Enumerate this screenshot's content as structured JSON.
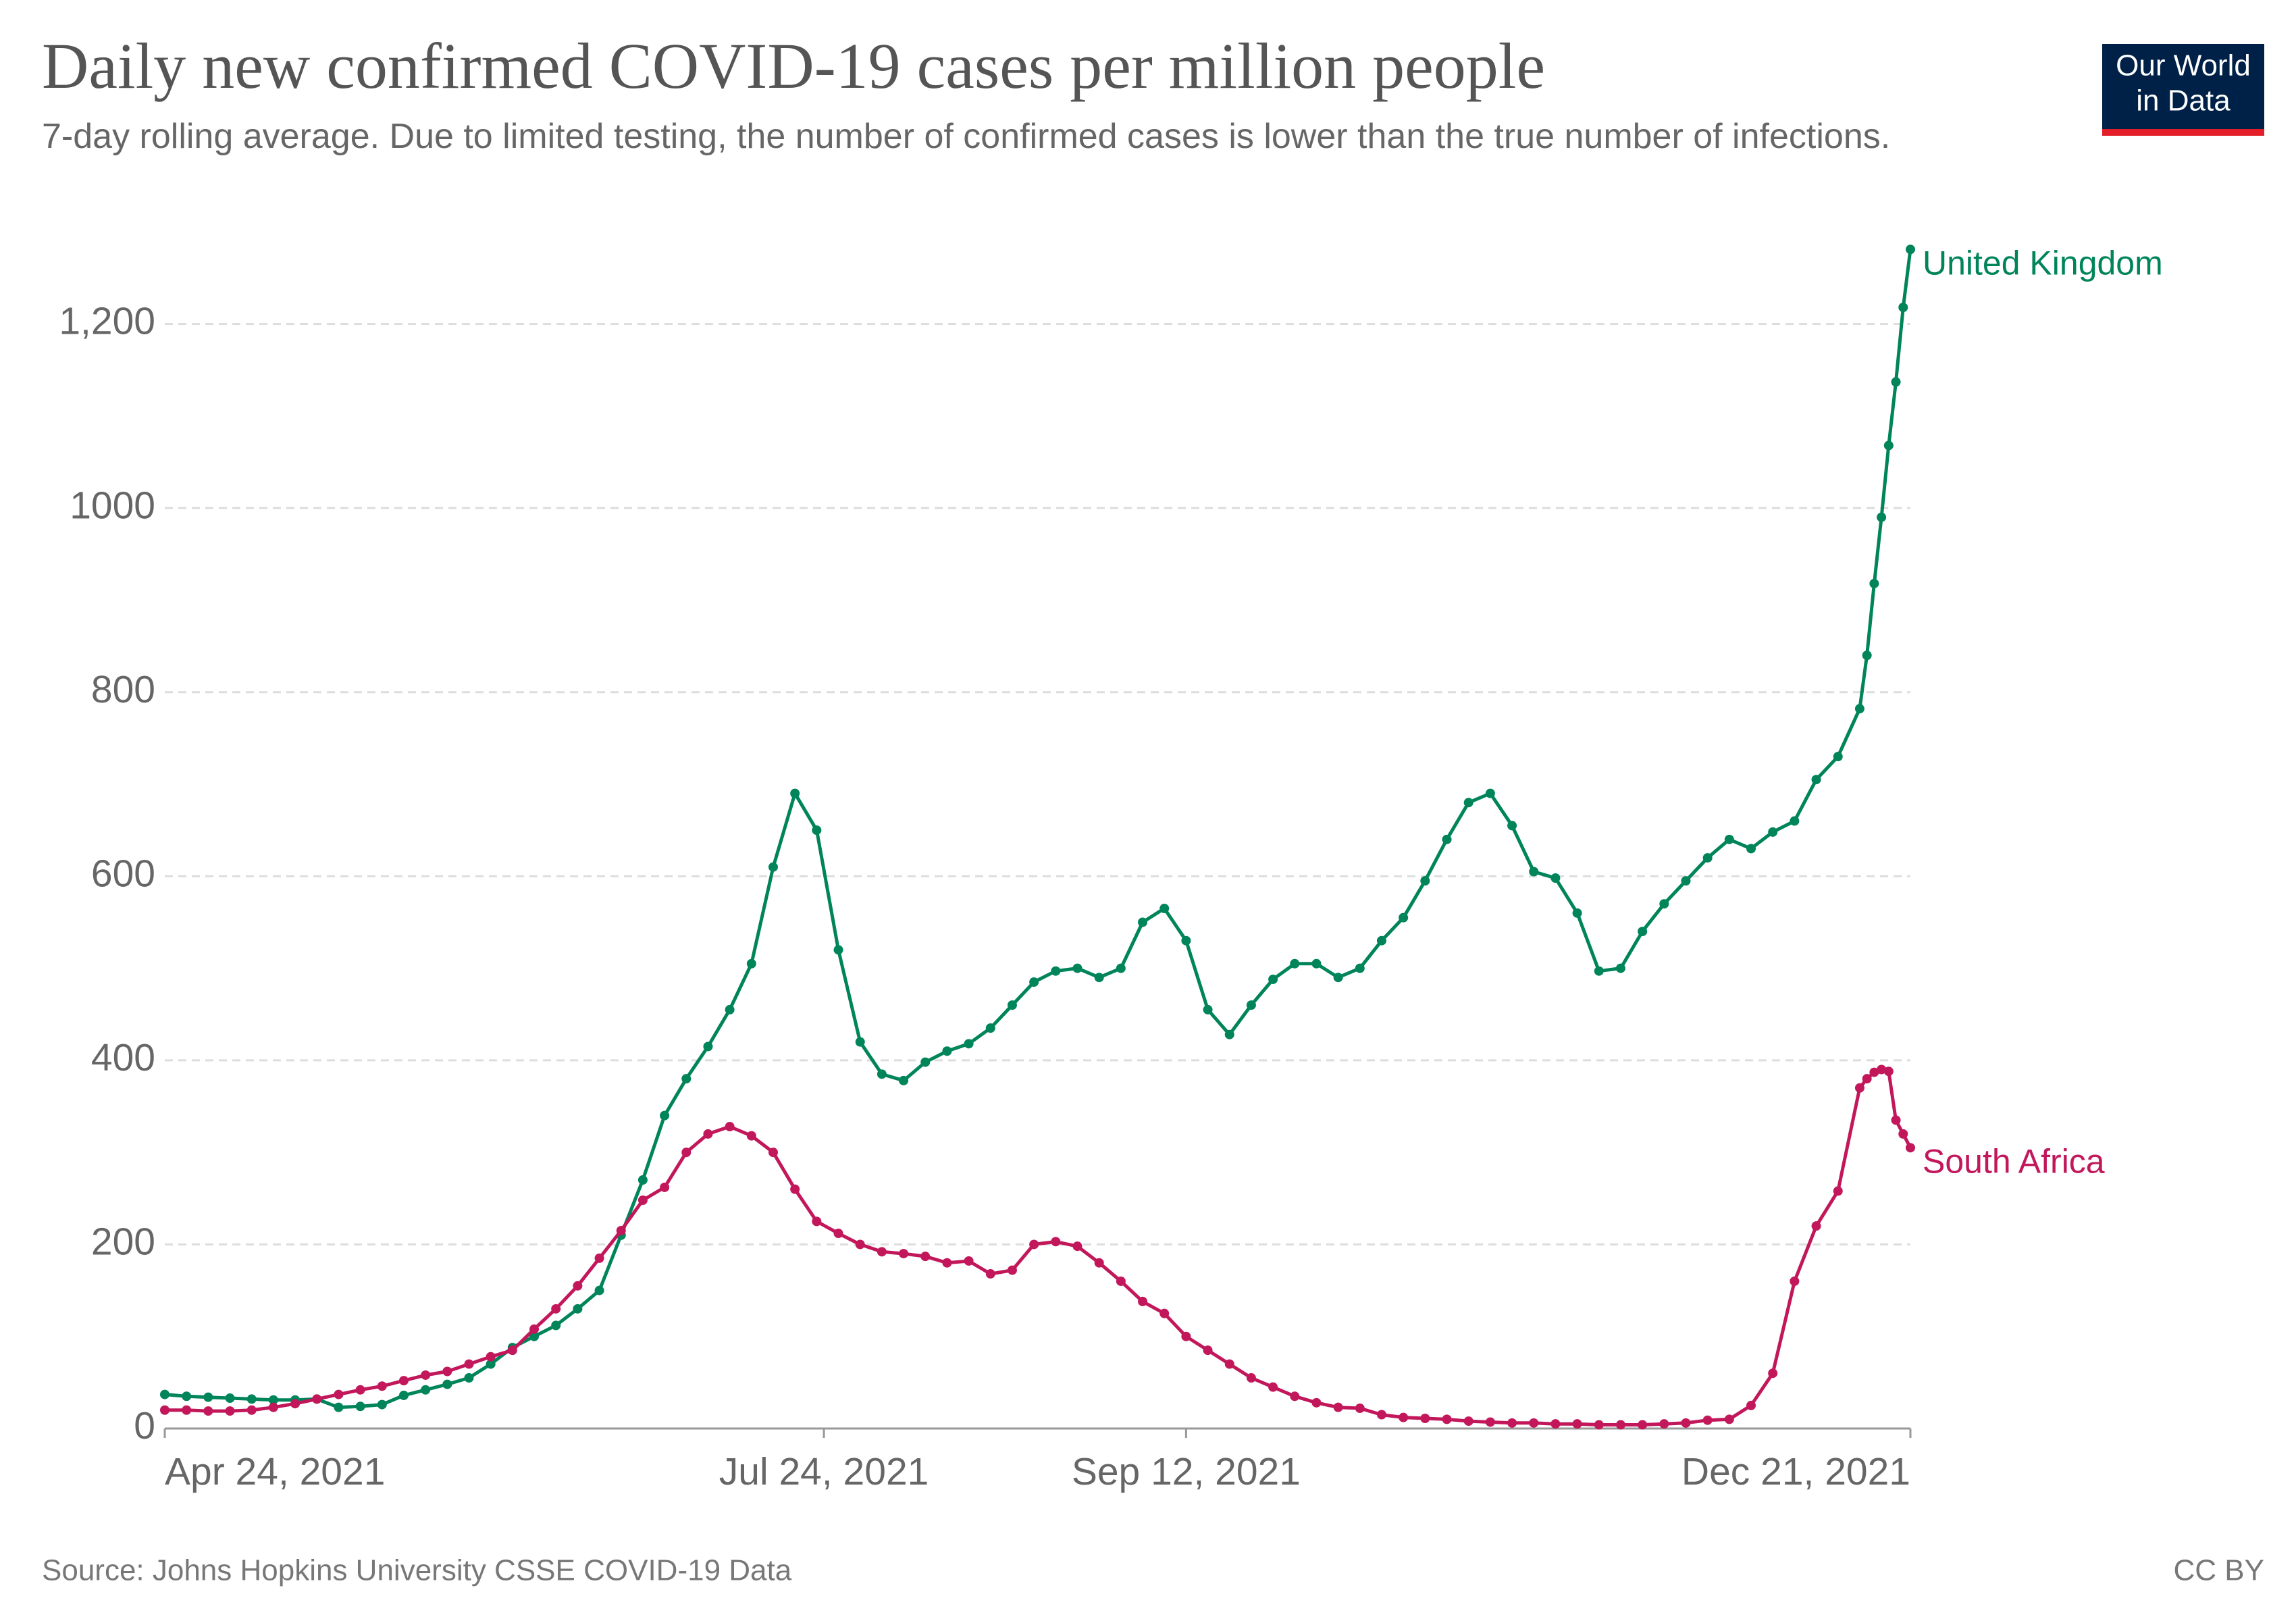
{
  "chart_data": {
    "type": "line",
    "title": "Daily new confirmed COVID-19 cases per million people",
    "subtitle": "7-day rolling average. Due to limited testing, the number of confirmed cases is lower than the true number of infections.",
    "source": "Source: Johns Hopkins University CSSE COVID-19 Data",
    "license": "CC BY",
    "logo": [
      "Our World",
      "in Data"
    ],
    "x": [
      "2021-04-24",
      "2021-04-27",
      "2021-04-30",
      "2021-05-03",
      "2021-05-06",
      "2021-05-09",
      "2021-05-12",
      "2021-05-15",
      "2021-05-18",
      "2021-05-21",
      "2021-05-24",
      "2021-05-27",
      "2021-05-30",
      "2021-06-02",
      "2021-06-05",
      "2021-06-08",
      "2021-06-11",
      "2021-06-14",
      "2021-06-17",
      "2021-06-20",
      "2021-06-23",
      "2021-06-26",
      "2021-06-29",
      "2021-07-02",
      "2021-07-05",
      "2021-07-08",
      "2021-07-11",
      "2021-07-14",
      "2021-07-17",
      "2021-07-20",
      "2021-07-23",
      "2021-07-26",
      "2021-07-29",
      "2021-08-01",
      "2021-08-04",
      "2021-08-07",
      "2021-08-10",
      "2021-08-13",
      "2021-08-16",
      "2021-08-19",
      "2021-08-22",
      "2021-08-25",
      "2021-08-28",
      "2021-08-31",
      "2021-09-03",
      "2021-09-06",
      "2021-09-09",
      "2021-09-12",
      "2021-09-15",
      "2021-09-18",
      "2021-09-21",
      "2021-09-24",
      "2021-09-27",
      "2021-09-30",
      "2021-10-03",
      "2021-10-06",
      "2021-10-09",
      "2021-10-12",
      "2021-10-15",
      "2021-10-18",
      "2021-10-21",
      "2021-10-24",
      "2021-10-27",
      "2021-10-30",
      "2021-11-02",
      "2021-11-05",
      "2021-11-08",
      "2021-11-11",
      "2021-11-14",
      "2021-11-17",
      "2021-11-20",
      "2021-11-23",
      "2021-11-26",
      "2021-11-29",
      "2021-12-02",
      "2021-12-05",
      "2021-12-08",
      "2021-12-11",
      "2021-12-14",
      "2021-12-15",
      "2021-12-16",
      "2021-12-17",
      "2021-12-18",
      "2021-12-19",
      "2021-12-20",
      "2021-12-21"
    ],
    "series": [
      {
        "name": "United Kingdom",
        "color": "#00845a",
        "values": [
          37,
          35,
          34,
          33,
          32,
          31,
          31,
          32,
          23,
          24,
          26,
          36,
          42,
          48,
          55,
          70,
          88,
          100,
          112,
          130,
          150,
          210,
          270,
          340,
          380,
          415,
          455,
          505,
          610,
          690,
          650,
          520,
          420,
          385,
          378,
          398,
          410,
          418,
          435,
          460,
          485,
          497,
          500,
          490,
          500,
          550,
          565,
          530,
          455,
          428,
          460,
          488,
          505,
          505,
          490,
          500,
          530,
          555,
          595,
          640,
          680,
          690,
          655,
          605,
          598,
          560,
          497,
          500,
          540,
          570,
          595,
          620,
          640,
          630,
          648,
          660,
          705,
          730,
          782,
          840,
          918,
          990,
          1068,
          1137,
          1218,
          1281
        ]
      },
      {
        "name": "South Africa",
        "color": "#c2185b",
        "values": [
          20,
          20,
          19,
          19,
          20,
          23,
          27,
          32,
          37,
          42,
          46,
          52,
          58,
          62,
          70,
          78,
          85,
          108,
          130,
          155,
          185,
          215,
          248,
          262,
          300,
          320,
          328,
          318,
          300,
          260,
          225,
          212,
          200,
          192,
          190,
          187,
          180,
          182,
          168,
          172,
          200,
          203,
          198,
          180,
          160,
          138,
          125,
          100,
          85,
          70,
          55,
          45,
          35,
          28,
          23,
          22,
          15,
          12,
          11,
          10,
          8,
          7,
          6,
          6,
          5,
          5,
          4,
          4,
          4,
          5,
          6,
          9,
          10,
          25,
          60,
          160,
          220,
          258,
          370,
          380,
          387,
          390,
          388,
          335,
          320,
          305
        ]
      }
    ],
    "xlim": [
      "2021-04-24",
      "2021-12-21"
    ],
    "xticks": [
      {
        "value": "2021-04-24",
        "label": "Apr 24, 2021"
      },
      {
        "value": "2021-07-24",
        "label": "Jul 24, 2021"
      },
      {
        "value": "2021-09-12",
        "label": "Sep 12, 2021"
      },
      {
        "value": "2021-12-21",
        "label": "Dec 21, 2021"
      }
    ],
    "ylim": [
      0,
      1290
    ],
    "yticks": [
      0,
      200,
      400,
      600,
      800,
      1000,
      {
        "value": 1200,
        "label": "1,200"
      }
    ],
    "grid": true
  }
}
